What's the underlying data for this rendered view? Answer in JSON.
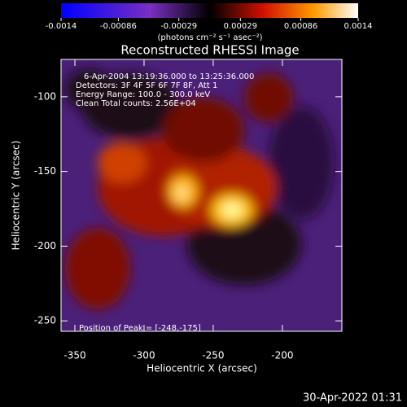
{
  "chart_data": {
    "type": "image",
    "title": "Reconstructed RHESSI Image",
    "x_label": "Heliocentric X (arcsec)",
    "y_label": "Heliocentric Y (arcsec)",
    "annotations": [
      "6-Apr-2004 13:19:36.000 to 13:25:36.000",
      "Detectors: 3F 4F 5F 6F 7F 8F, Att 1",
      "Energy Range: 100.0 - 300.0 keV",
      "Clean     Total counts: 2.56E+04"
    ],
    "peak_label": "Position of Peak = [-248,-175]",
    "footer": "30-Apr-2022 01:31",
    "xlim": [
      -360,
      -157
    ],
    "xticks": [
      -350,
      -300,
      -250,
      -200
    ],
    "ylim": [
      -257,
      -75
    ],
    "yticks": [
      -100,
      -150,
      -200,
      -250
    ],
    "colorbar": {
      "label": "(photons cm⁻² s⁻¹ asec⁻²)",
      "lim": [
        -0.0014,
        0.0014
      ],
      "ticks": [
        -0.0014,
        -0.00086,
        -0.00029,
        0.00029,
        0.00086,
        0.0014
      ]
    }
  }
}
